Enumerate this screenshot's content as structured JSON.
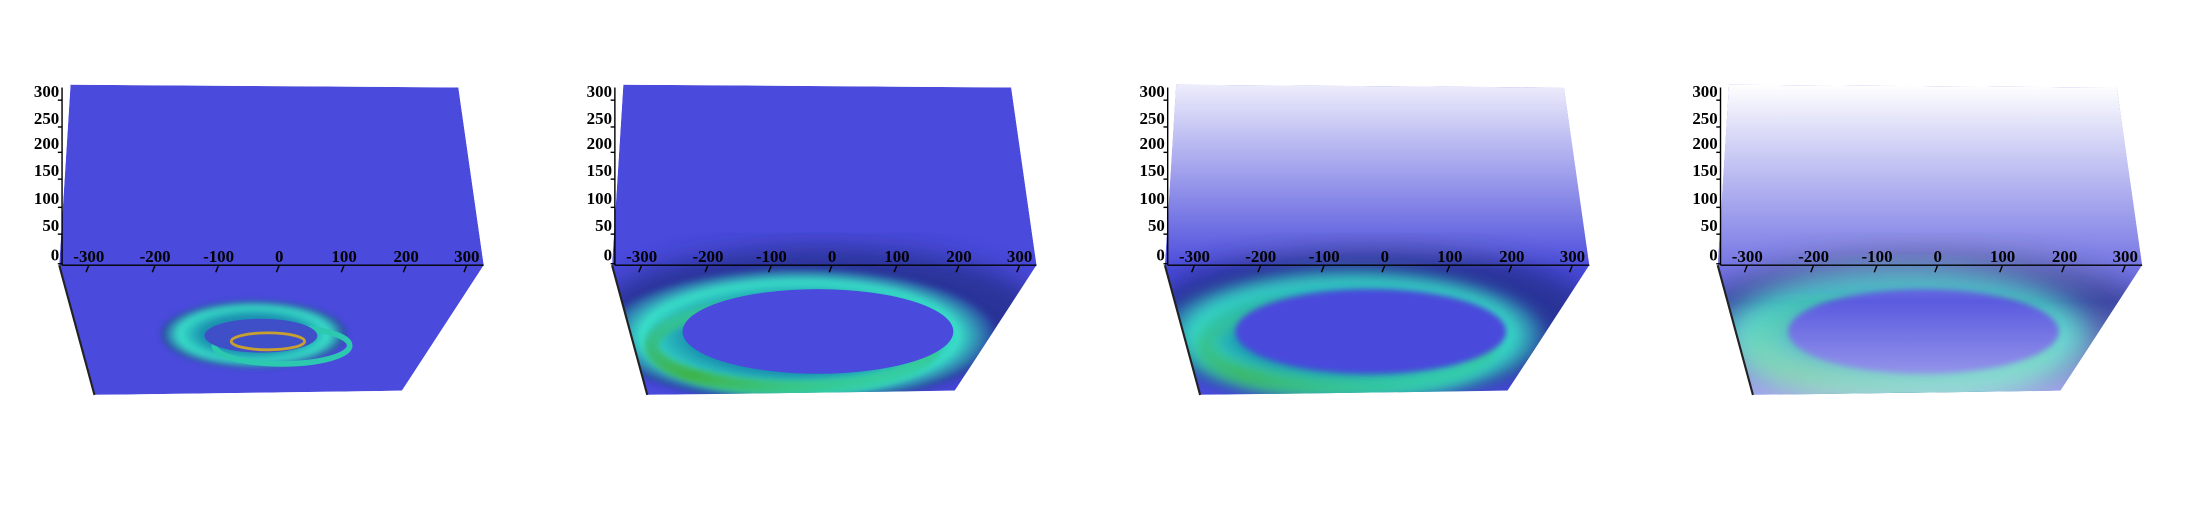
{
  "panels": [
    {
      "y_ticks": [
        0,
        50,
        100,
        150,
        200,
        250,
        300
      ],
      "x_ticks": [
        -300,
        -200,
        -100,
        0,
        100,
        200,
        300
      ]
    },
    {
      "y_ticks": [
        0,
        50,
        100,
        150,
        200,
        250,
        300
      ],
      "x_ticks": [
        -300,
        -200,
        -100,
        0,
        100,
        200,
        300
      ]
    },
    {
      "y_ticks": [
        0,
        50,
        100,
        150,
        200,
        250,
        300
      ],
      "x_ticks": [
        -300,
        -200,
        -100,
        0,
        100,
        200,
        300
      ]
    },
    {
      "y_ticks": [
        0,
        50,
        100,
        150,
        200,
        250,
        300
      ],
      "x_ticks": [
        -300,
        -200,
        -100,
        0,
        100,
        200,
        300
      ]
    }
  ]
}
